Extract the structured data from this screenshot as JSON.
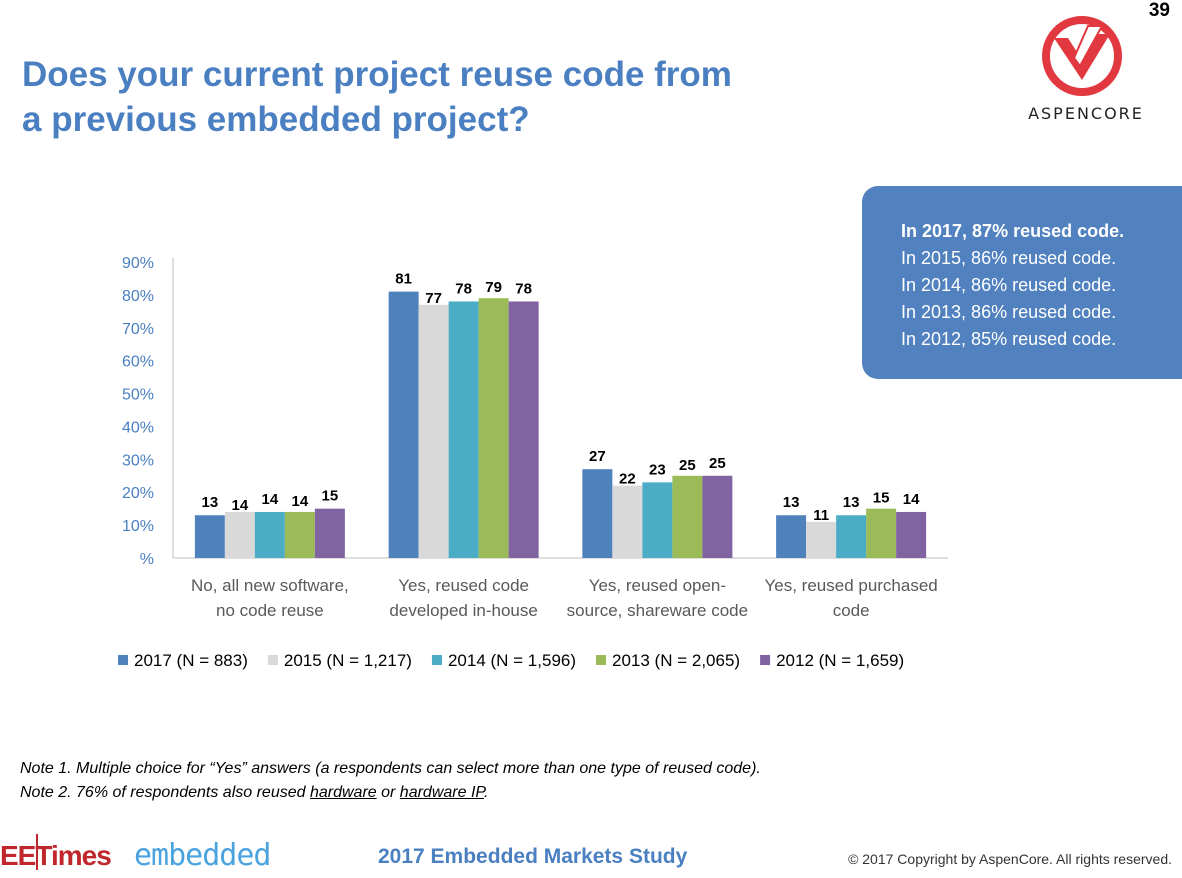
{
  "page_number": "39",
  "title_lines": [
    "Does your current project reuse code from",
    "a previous embedded project?"
  ],
  "brand": {
    "name": "ASPENCORE",
    "color": "#e2383f"
  },
  "callout": {
    "lines": [
      "In 2017, 87% reused code.",
      "In 2015, 86% reused code.",
      "In 2014, 86% reused code.",
      "In 2013, 86% reused code.",
      "In 2012, 85% reused code."
    ],
    "background": "#5181bf"
  },
  "chart_data": {
    "type": "bar",
    "title": "",
    "xlabel": "",
    "ylabel": "",
    "ylim": [
      0,
      90
    ],
    "y_ticks": [
      "%",
      "10%",
      "20%",
      "30%",
      "40%",
      "50%",
      "60%",
      "70%",
      "80%",
      "90%"
    ],
    "grid": false,
    "legend_position": "bottom",
    "categories": [
      [
        "No, all new software,",
        "no code reuse"
      ],
      [
        "Yes, reused code",
        "developed in-house"
      ],
      [
        "Yes, reused open-",
        "source, shareware code"
      ],
      [
        "Yes, reused purchased",
        "code"
      ]
    ],
    "series": [
      {
        "name": "2017 (N = 883)",
        "color": "#4f81bd",
        "values": [
          13,
          81,
          27,
          13
        ]
      },
      {
        "name": "2015 (N = 1,217)",
        "color": "#d9d9d9",
        "values": [
          14,
          77,
          22,
          11
        ]
      },
      {
        "name": "2014 (N = 1,596)",
        "color": "#4bacc6",
        "values": [
          14,
          78,
          23,
          13
        ]
      },
      {
        "name": "2013 (N = 2,065)",
        "color": "#9bbb59",
        "values": [
          14,
          79,
          25,
          15
        ]
      },
      {
        "name": "2012 (N = 1,659)",
        "color": "#8064a2",
        "values": [
          15,
          78,
          25,
          14
        ]
      }
    ]
  },
  "notes": {
    "note1": "Note 1.  Multiple choice for “Yes” answers (a respondents can select more than one type of reused code).",
    "note2_prefix": "Note 2. 76% of respondents also reused ",
    "note2_link1": "hardware",
    "note2_mid": " or ",
    "note2_link2": "hardware IP",
    "note2_suffix": "."
  },
  "footer": {
    "eetimes_main": "EETimes",
    "eetimes_sub": "embedded",
    "study": "2017 Embedded Markets Study",
    "copyright": "© 2017 Copyright by AspenCore. All rights reserved."
  }
}
